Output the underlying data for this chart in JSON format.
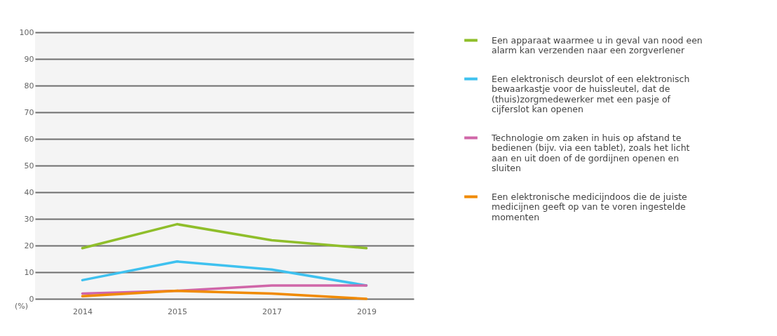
{
  "chart_data": {
    "type": "line",
    "ylabel": "(%)",
    "categories": [
      "2014",
      "2015",
      "2017",
      "2019"
    ],
    "ylim": [
      0,
      100
    ],
    "yticks": [
      0,
      10,
      20,
      30,
      40,
      50,
      60,
      70,
      80,
      90,
      100
    ],
    "grid": "y",
    "legend": "right",
    "series": [
      {
        "name": "Een apparaat waarmee u in geval van nood een alarm kan verzenden naar een zorgverlener",
        "color": "#8fbe2a",
        "values": [
          19,
          28,
          22,
          19
        ]
      },
      {
        "name": "Een elektronisch deurslot of een elektronisch bewaarkastje voor de huissleutel, dat de (thuis)zorgmedewerker met een pasje of cijferslot kan openen",
        "color": "#3ec1ef",
        "values": [
          7,
          14,
          11,
          5
        ]
      },
      {
        "name": "Technologie om zaken in huis op afstand te bedienen (bijv. via een tablet), zoals het licht aan en uit doen of de gordijnen openen en sluiten",
        "color": "#d066a8",
        "values": [
          2,
          3,
          5,
          5
        ]
      },
      {
        "name": "Een elektronische medicijndoos die de juiste medicijnen geeft op van te voren ingestelde momenten",
        "color": "#f08a00",
        "values": [
          1,
          3,
          2,
          0
        ]
      }
    ]
  }
}
